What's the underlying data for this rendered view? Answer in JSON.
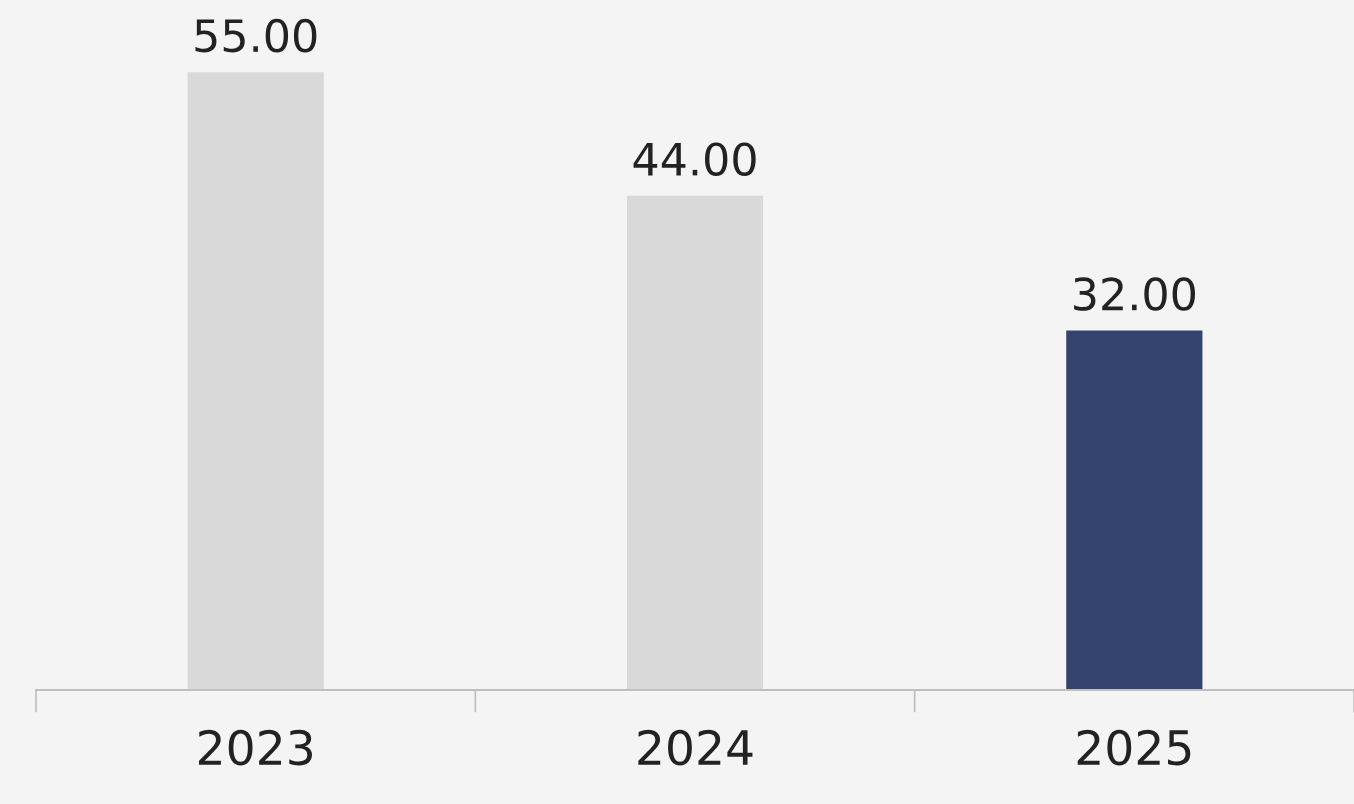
{
  "chart_data": {
    "type": "bar",
    "categories": [
      "2023",
      "2024",
      "2025"
    ],
    "values": [
      55,
      44,
      32
    ],
    "colors": [
      "#d9d9d9",
      "#d9d9d9",
      "#34446e"
    ],
    "value_labels": [
      "55.00",
      "44.00",
      "32.00"
    ],
    "grid": false,
    "legend": false
  }
}
